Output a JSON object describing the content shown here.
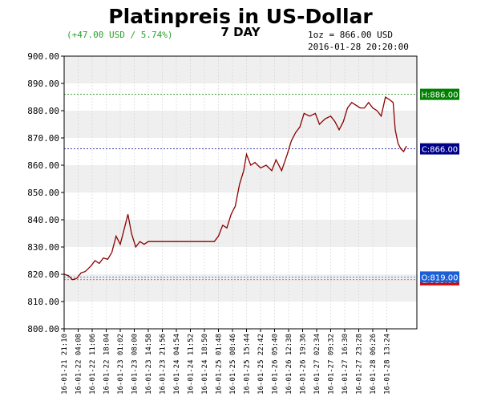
{
  "header": {
    "title": "Platinpreis in US-Dollar",
    "subtitle": "7 DAY",
    "change": "(+47.00 USD / 5.74%)",
    "price_info": "1oz = 866.00 USD",
    "timestamp": "2016-01-28 20:20:00"
  },
  "colors": {
    "line": "#8b0000",
    "change_text": "#2ca02c",
    "high": "#008000",
    "close": "#00008b",
    "open": "#1c5fd4",
    "low": "#e00000",
    "band": "#efefef",
    "grid": "#d0d0d0"
  },
  "chart_data": {
    "type": "line",
    "title": "Platinpreis in US-Dollar",
    "subtitle": "7 DAY",
    "ylim": [
      800,
      900
    ],
    "y_ticks": [
      "800.00",
      "810.00",
      "820.00",
      "830.00",
      "840.00",
      "850.00",
      "860.00",
      "870.00",
      "880.00",
      "890.00",
      "900.00"
    ],
    "x_ticks": [
      "16-01-21 21:10",
      "16-01-22 04:08",
      "16-01-22 11:06",
      "16-01-22 18:04",
      "16-01-23 01:02",
      "16-01-23 08:00",
      "16-01-23 14:58",
      "16-01-23 21:56",
      "16-01-24 04:54",
      "16-01-24 11:52",
      "16-01-24 18:50",
      "16-01-25 01:48",
      "16-01-25 08:46",
      "16-01-25 15:44",
      "16-01-25 22:42",
      "16-01-26 05:40",
      "16-01-26 12:38",
      "16-01-26 19:36",
      "16-01-27 02:34",
      "16-01-27 09:32",
      "16-01-27 16:30",
      "16-01-27 23:28",
      "16-01-28 06:26",
      "16-01-28 13:24"
    ],
    "reference_lines": [
      {
        "label": "H:886.00",
        "value": 886,
        "color": "#008000"
      },
      {
        "label": "C:866.00",
        "value": 866,
        "color": "#00008b"
      },
      {
        "label": "O:819.00",
        "value": 819,
        "color": "#1c5fd4"
      },
      {
        "label": "L:818.00",
        "value": 818,
        "color": "#e00000"
      }
    ],
    "series": [
      {
        "values": [
          [
            0,
            820
          ],
          [
            0.3,
            819.5
          ],
          [
            0.6,
            818
          ],
          [
            0.9,
            818.5
          ],
          [
            1.2,
            820.5
          ],
          [
            1.5,
            821
          ],
          [
            1.9,
            823
          ],
          [
            2.2,
            825
          ],
          [
            2.5,
            824
          ],
          [
            2.8,
            826
          ],
          [
            3.1,
            825.5
          ],
          [
            3.4,
            828
          ],
          [
            3.7,
            834
          ],
          [
            4.0,
            831
          ],
          [
            4.3,
            837
          ],
          [
            4.55,
            842
          ],
          [
            4.8,
            835
          ],
          [
            5.1,
            830
          ],
          [
            5.4,
            832
          ],
          [
            5.7,
            831
          ],
          [
            6.0,
            832
          ],
          [
            10.7,
            832
          ],
          [
            11.0,
            834
          ],
          [
            11.3,
            838
          ],
          [
            11.6,
            837
          ],
          [
            11.9,
            842
          ],
          [
            12.2,
            845
          ],
          [
            12.5,
            853
          ],
          [
            12.8,
            858
          ],
          [
            13.0,
            864
          ],
          [
            13.3,
            860
          ],
          [
            13.6,
            861
          ],
          [
            14.0,
            859
          ],
          [
            14.4,
            860
          ],
          [
            14.8,
            858
          ],
          [
            15.1,
            862
          ],
          [
            15.5,
            858
          ],
          [
            15.9,
            864
          ],
          [
            16.2,
            869
          ],
          [
            16.5,
            872
          ],
          [
            16.8,
            874
          ],
          [
            17.1,
            879
          ],
          [
            17.5,
            878
          ],
          [
            17.9,
            879
          ],
          [
            18.2,
            875
          ],
          [
            18.6,
            877
          ],
          [
            19.0,
            878
          ],
          [
            19.3,
            876
          ],
          [
            19.6,
            873
          ],
          [
            19.9,
            876
          ],
          [
            20.2,
            881
          ],
          [
            20.5,
            883
          ],
          [
            20.8,
            882
          ],
          [
            21.1,
            881
          ],
          [
            21.4,
            881
          ],
          [
            21.7,
            883
          ],
          [
            22.0,
            881
          ],
          [
            22.3,
            880
          ],
          [
            22.6,
            878
          ],
          [
            22.9,
            885
          ],
          [
            23.2,
            884
          ],
          [
            23.45,
            883
          ],
          [
            23.6,
            873
          ],
          [
            23.8,
            868
          ],
          [
            24.0,
            866
          ],
          [
            24.2,
            865
          ],
          [
            24.4,
            867
          ]
        ]
      }
    ]
  }
}
